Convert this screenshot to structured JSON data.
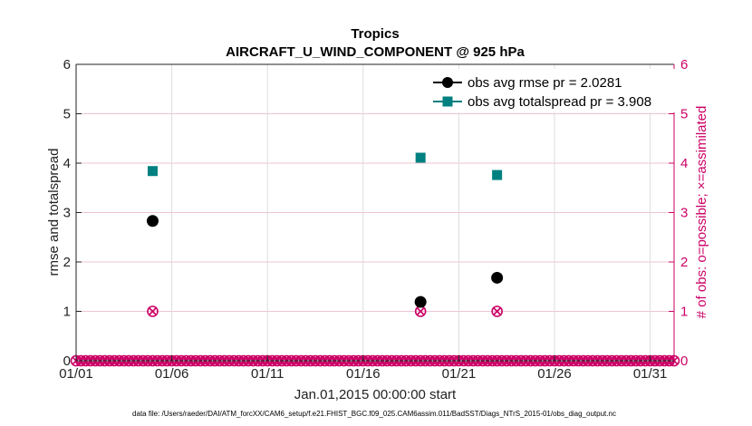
{
  "chart_data": {
    "type": "scatter",
    "title": "Tropics",
    "subtitle": "AIRCRAFT_U_WIND_COMPONENT @ 925 hPa",
    "xlabel": "Jan.01,2015 00:00:00 start",
    "ylabel": "rmse and totalspread",
    "ylabel_right": "# of obs: o=possible; ×=assimilated",
    "footer": "data file: /Users/raeder/DAI/ATM_forcXX/CAM6_setup/f.e21.FHIST_BGC.f09_025.CAM6assim.011/BadSST/Diags_NTrS_2015-01/obs_diag_output.nc",
    "xlim": [
      1,
      32.25
    ],
    "ylim": [
      0,
      6
    ],
    "ylim_right": [
      0,
      6
    ],
    "x_ticks": [
      {
        "value": 1,
        "label": "01/01"
      },
      {
        "value": 6,
        "label": "01/06"
      },
      {
        "value": 11,
        "label": "01/11"
      },
      {
        "value": 16,
        "label": "01/16"
      },
      {
        "value": 21,
        "label": "01/21"
      },
      {
        "value": 26,
        "label": "01/26"
      },
      {
        "value": 31,
        "label": "01/31"
      }
    ],
    "y_ticks": [
      "0",
      "1",
      "2",
      "3",
      "4",
      "5",
      "6"
    ],
    "y_ticks_right": [
      "0",
      "1",
      "2",
      "3",
      "4",
      "5",
      "6"
    ],
    "legend": [
      {
        "label": "obs avg rmse pr = 2.0281",
        "color": "#000000",
        "marker": "circle"
      },
      {
        "label": "obs avg totalspread pr = 3.908",
        "color": "#008080",
        "marker": "square"
      }
    ],
    "series": [
      {
        "name": "rmse",
        "color": "#000000",
        "marker": "circle",
        "points": [
          {
            "x": 5,
            "y": 2.83
          },
          {
            "x": 19,
            "y": 1.19
          },
          {
            "x": 23,
            "y": 1.68
          }
        ]
      },
      {
        "name": "totalspread",
        "color": "#008080",
        "marker": "square",
        "points": [
          {
            "x": 5,
            "y": 3.84
          },
          {
            "x": 19,
            "y": 4.11
          },
          {
            "x": 23,
            "y": 3.76
          }
        ]
      }
    ],
    "obs_count": {
      "color": "#cc0066",
      "x_start": 1,
      "x_end": 32.25,
      "step": 0.25,
      "nonzero": [
        {
          "x": 5,
          "y": 1
        },
        {
          "x": 19,
          "y": 1
        },
        {
          "x": 23,
          "y": 1
        }
      ]
    }
  }
}
